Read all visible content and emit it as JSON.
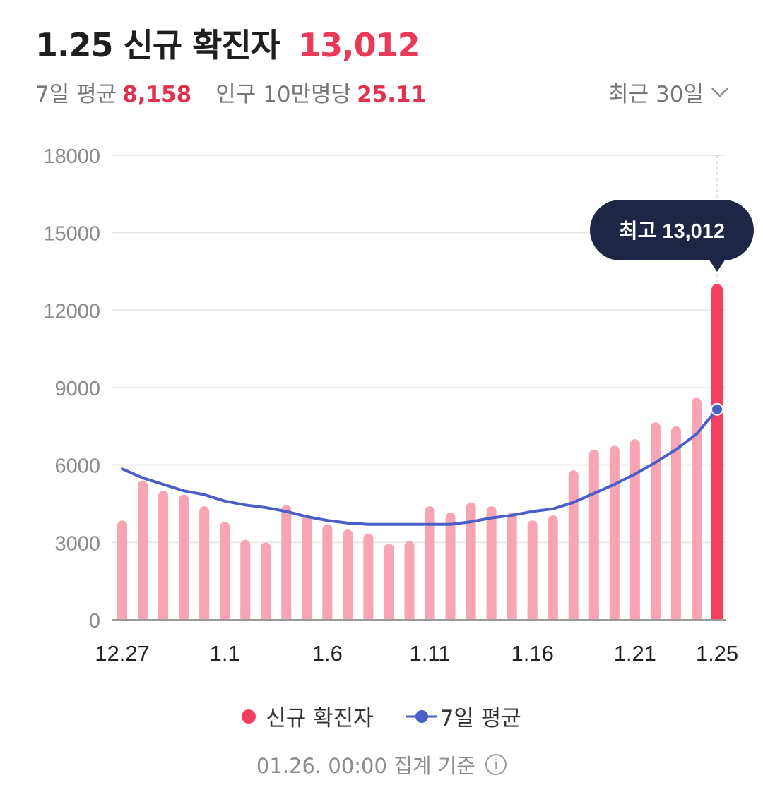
{
  "header": {
    "title": "1.25 신규 확진자",
    "count": "13,012",
    "avg_label": "7일 평균",
    "avg_value": "8,158",
    "per_label": "인구 10만명당",
    "per_value": "25.11",
    "period": "최근 30일"
  },
  "colors": {
    "accent": "#ea3a57",
    "bar": "#f7a5b4",
    "bar_highlight": "#f1415f",
    "line": "#4a5ec8",
    "tooltip_bg": "#1f2645"
  },
  "chart_data": {
    "type": "bar",
    "title": "1.25 신규 확진자",
    "xlabel": "",
    "ylabel": "",
    "ylim": [
      0,
      18000
    ],
    "yticks": [
      0,
      3000,
      6000,
      9000,
      12000,
      15000,
      18000
    ],
    "ytick_labels": [
      "0",
      "3000",
      "6000",
      "9000",
      "12000",
      "15000",
      "18000"
    ],
    "categories": [
      "12.27",
      "12.28",
      "12.29",
      "12.30",
      "12.31",
      "1.1",
      "1.2",
      "1.3",
      "1.4",
      "1.5",
      "1.6",
      "1.7",
      "1.8",
      "1.9",
      "1.10",
      "1.11",
      "1.12",
      "1.13",
      "1.14",
      "1.15",
      "1.16",
      "1.17",
      "1.18",
      "1.19",
      "1.20",
      "1.21",
      "1.22",
      "1.23",
      "1.24",
      "1.25"
    ],
    "xtick_labels": [
      {
        "index": 0,
        "label": "12.27"
      },
      {
        "index": 5,
        "label": "1.1"
      },
      {
        "index": 10,
        "label": "1.6"
      },
      {
        "index": 15,
        "label": "1.11"
      },
      {
        "index": 20,
        "label": "1.16"
      },
      {
        "index": 25,
        "label": "1.21"
      },
      {
        "index": 29,
        "label": "1.25"
      }
    ],
    "series": [
      {
        "name": "신규 확진자",
        "type": "bar",
        "values": [
          3850,
          5400,
          5000,
          4850,
          4400,
          3800,
          3100,
          3000,
          4450,
          4050,
          3700,
          3500,
          3350,
          2950,
          3050,
          4400,
          4150,
          4550,
          4400,
          4150,
          3850,
          4050,
          5800,
          6600,
          6750,
          7000,
          7650,
          7500,
          8600,
          13012
        ]
      },
      {
        "name": "7일 평균",
        "type": "line",
        "values": [
          5850,
          5500,
          5250,
          5000,
          4850,
          4600,
          4450,
          4350,
          4200,
          4000,
          3850,
          3750,
          3700,
          3700,
          3700,
          3700,
          3700,
          3800,
          3950,
          4050,
          4200,
          4300,
          4550,
          4900,
          5250,
          5650,
          6100,
          6600,
          7200,
          8158
        ]
      }
    ],
    "tooltip": "최고 13,012",
    "highlight_index": 29
  },
  "legend": {
    "cases": "신규 확진자",
    "avg": "7일 평균"
  },
  "footer": {
    "note": "01.26. 00:00 집계 기준",
    "info_icon": "info-icon"
  }
}
